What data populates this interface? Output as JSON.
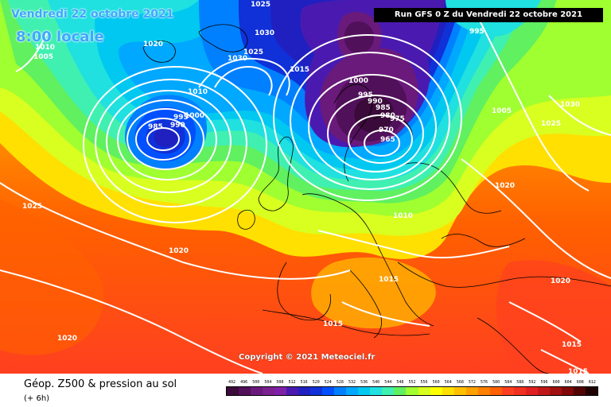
{
  "header": {
    "date_title": "Vendredi 22 octobre 2021",
    "local_time": "8:00 locale",
    "run_banner": "Run GFS 0 Z du Vendredi 22 octobre 2021"
  },
  "copyright": "Copyright © 2021 Meteociel.fr",
  "legend": {
    "title": "Géop. Z500 & pression au sol",
    "subtitle": "(+ 6h)",
    "scale_values": [
      "492",
      "496",
      "500",
      "504",
      "508",
      "512",
      "516",
      "520",
      "524",
      "528",
      "532",
      "536",
      "540",
      "544",
      "548",
      "552",
      "556",
      "560",
      "564",
      "568",
      "572",
      "576",
      "580",
      "584",
      "588",
      "592",
      "596",
      "600",
      "604",
      "608",
      "612"
    ],
    "scale_colors": [
      "#3a0a3a",
      "#51105a",
      "#6a1a7a",
      "#7a2090",
      "#8020a8",
      "#4a1ab0",
      "#2020c0",
      "#1030d8",
      "#0050ff",
      "#0080ff",
      "#00a8ff",
      "#00c8f0",
      "#20e0e0",
      "#40f0b0",
      "#60f060",
      "#a0ff30",
      "#d8ff20",
      "#ffff00",
      "#ffe000",
      "#ffc000",
      "#ffa000",
      "#ff8000",
      "#ff6000",
      "#ff4020",
      "#f03020",
      "#e02020",
      "#c01818",
      "#a01010",
      "#800808",
      "#500404",
      "#200000"
    ]
  },
  "isobar_labels": [
    {
      "text": "1025"
    },
    {
      "text": "1020"
    },
    {
      "text": "1010"
    },
    {
      "text": "1005"
    },
    {
      "text": "1030"
    },
    {
      "text": "1030"
    },
    {
      "text": "1025"
    },
    {
      "text": "1015"
    },
    {
      "text": "995"
    },
    {
      "text": "1000"
    },
    {
      "text": "995"
    },
    {
      "text": "990"
    },
    {
      "text": "985"
    },
    {
      "text": "980"
    },
    {
      "text": "975"
    },
    {
      "text": "970"
    },
    {
      "text": "965"
    },
    {
      "text": "1005"
    },
    {
      "text": "1030"
    },
    {
      "text": "1025"
    },
    {
      "text": "985"
    },
    {
      "text": "990"
    },
    {
      "text": "995"
    },
    {
      "text": "1000"
    },
    {
      "text": "1010"
    },
    {
      "text": "1020"
    },
    {
      "text": "1025"
    },
    {
      "text": "1020"
    },
    {
      "text": "1010"
    },
    {
      "text": "1015"
    },
    {
      "text": "1020"
    },
    {
      "text": "1015"
    },
    {
      "text": "1020"
    },
    {
      "text": "1015"
    },
    {
      "text": "1015"
    }
  ]
}
